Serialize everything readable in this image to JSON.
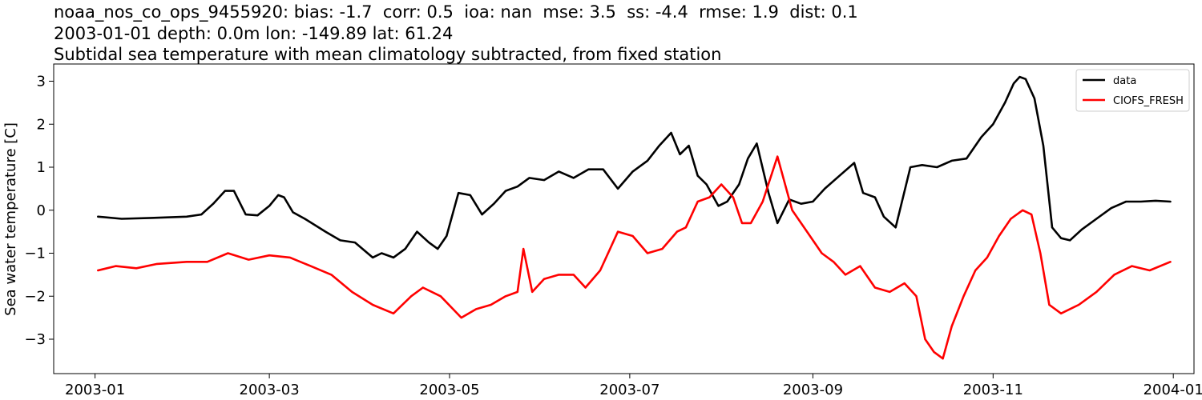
{
  "chart_data": {
    "type": "line",
    "title_lines": [
      "noaa_nos_co_ops_9455920: bias: -1.7  corr: 0.5  ioa: nan  mse: 3.5  ss: -4.4  rmse: 1.9  dist: 0.1",
      "2003-01-01 depth: 0.0m lon: -149.89 lat: 61.24",
      "Subtidal sea temperature with mean climatology subtracted, from fixed station"
    ],
    "xlabel": "",
    "ylabel": "Sea water temperature [C]",
    "xlim": [
      "2002-12-18",
      "2004-01-08"
    ],
    "ylim": [
      -3.8,
      3.4
    ],
    "x_ticks": [
      "2003-01-01",
      "2003-03-01",
      "2003-05-01",
      "2003-07-01",
      "2003-09-01",
      "2003-11-01",
      "2004-01-01"
    ],
    "x_tick_labels": [
      "2003-01",
      "2003-03",
      "2003-05",
      "2003-07",
      "2003-09",
      "2003-11",
      "2004-01"
    ],
    "y_ticks": [
      -3,
      -2,
      -1,
      0,
      1,
      2,
      3
    ],
    "y_tick_labels": [
      "−3",
      "−2",
      "−1",
      "0",
      "1",
      "2",
      "3"
    ],
    "grid": false,
    "legend": {
      "placement": "top-right"
    },
    "series": [
      {
        "name": "data",
        "color": "#000000",
        "x": [
          "2003-01-02",
          "2003-01-10",
          "2003-01-20",
          "2003-02-01",
          "2003-02-06",
          "2003-02-10",
          "2003-02-14",
          "2003-02-17",
          "2003-02-21",
          "2003-02-25",
          "2003-03-01",
          "2003-03-04",
          "2003-03-06",
          "2003-03-09",
          "2003-03-13",
          "2003-03-20",
          "2003-03-25",
          "2003-03-30",
          "2003-04-05",
          "2003-04-08",
          "2003-04-12",
          "2003-04-16",
          "2003-04-20",
          "2003-04-24",
          "2003-04-27",
          "2003-04-30",
          "2003-05-04",
          "2003-05-08",
          "2003-05-12",
          "2003-05-16",
          "2003-05-20",
          "2003-05-24",
          "2003-05-28",
          "2003-06-02",
          "2003-06-07",
          "2003-06-12",
          "2003-06-17",
          "2003-06-22",
          "2003-06-27",
          "2003-07-02",
          "2003-07-07",
          "2003-07-11",
          "2003-07-15",
          "2003-07-18",
          "2003-07-21",
          "2003-07-24",
          "2003-07-27",
          "2003-07-31",
          "2003-08-03",
          "2003-08-07",
          "2003-08-10",
          "2003-08-13",
          "2003-08-17",
          "2003-08-20",
          "2003-08-24",
          "2003-08-28",
          "2003-09-01",
          "2003-09-05",
          "2003-09-10",
          "2003-09-15",
          "2003-09-18",
          "2003-09-22",
          "2003-09-25",
          "2003-09-29",
          "2003-10-04",
          "2003-10-08",
          "2003-10-13",
          "2003-10-18",
          "2003-10-23",
          "2003-10-28",
          "2003-11-01",
          "2003-11-05",
          "2003-11-08",
          "2003-11-10",
          "2003-11-12",
          "2003-11-15",
          "2003-11-18",
          "2003-11-21",
          "2003-11-24",
          "2003-11-27",
          "2003-12-01",
          "2003-12-06",
          "2003-12-11",
          "2003-12-16",
          "2003-12-21",
          "2003-12-26",
          "2003-12-31"
        ],
        "y": [
          -0.15,
          -0.2,
          -0.18,
          -0.15,
          -0.1,
          0.15,
          0.45,
          0.45,
          -0.1,
          -0.12,
          0.1,
          0.35,
          0.3,
          -0.05,
          -0.2,
          -0.5,
          -0.7,
          -0.75,
          -1.1,
          -1.0,
          -1.1,
          -0.9,
          -0.5,
          -0.75,
          -0.9,
          -0.6,
          0.4,
          0.35,
          -0.1,
          0.15,
          0.45,
          0.55,
          0.75,
          0.7,
          0.9,
          0.75,
          0.95,
          0.95,
          0.5,
          0.9,
          1.15,
          1.5,
          1.8,
          1.3,
          1.5,
          0.8,
          0.6,
          0.1,
          0.2,
          0.6,
          1.2,
          1.55,
          0.4,
          -0.3,
          0.25,
          0.15,
          0.2,
          0.5,
          0.8,
          1.1,
          0.4,
          0.3,
          -0.15,
          -0.4,
          1.0,
          1.05,
          1.0,
          1.15,
          1.2,
          1.7,
          2.0,
          2.5,
          2.95,
          3.1,
          3.05,
          2.6,
          1.5,
          -0.4,
          -0.65,
          -0.7,
          -0.45,
          -0.2,
          0.05,
          0.2,
          0.2,
          0.22,
          0.2
        ]
      },
      {
        "name": "CIOFS_FRESH",
        "color": "#ff0000",
        "x": [
          "2003-01-02",
          "2003-01-08",
          "2003-01-15",
          "2003-01-22",
          "2003-02-01",
          "2003-02-08",
          "2003-02-15",
          "2003-02-22",
          "2003-03-01",
          "2003-03-08",
          "2003-03-15",
          "2003-03-22",
          "2003-03-29",
          "2003-04-05",
          "2003-04-12",
          "2003-04-18",
          "2003-04-22",
          "2003-04-28",
          "2003-05-05",
          "2003-05-10",
          "2003-05-15",
          "2003-05-20",
          "2003-05-24",
          "2003-05-26",
          "2003-05-29",
          "2003-06-02",
          "2003-06-07",
          "2003-06-12",
          "2003-06-16",
          "2003-06-21",
          "2003-06-27",
          "2003-07-02",
          "2003-07-07",
          "2003-07-12",
          "2003-07-17",
          "2003-07-20",
          "2003-07-24",
          "2003-07-28",
          "2003-08-01",
          "2003-08-05",
          "2003-08-08",
          "2003-08-11",
          "2003-08-15",
          "2003-08-20",
          "2003-08-25",
          "2003-08-30",
          "2003-09-04",
          "2003-09-08",
          "2003-09-12",
          "2003-09-17",
          "2003-09-22",
          "2003-09-27",
          "2003-10-02",
          "2003-10-06",
          "2003-10-09",
          "2003-10-12",
          "2003-10-15",
          "2003-10-18",
          "2003-10-22",
          "2003-10-26",
          "2003-10-30",
          "2003-11-03",
          "2003-11-07",
          "2003-11-11",
          "2003-11-14",
          "2003-11-17",
          "2003-11-20",
          "2003-11-24",
          "2003-11-30",
          "2003-12-06",
          "2003-12-12",
          "2003-12-18",
          "2003-12-24",
          "2003-12-31"
        ],
        "y": [
          -1.4,
          -1.3,
          -1.35,
          -1.25,
          -1.2,
          -1.2,
          -1.0,
          -1.15,
          -1.05,
          -1.1,
          -1.3,
          -1.5,
          -1.9,
          -2.2,
          -2.4,
          -2.0,
          -1.8,
          -2.0,
          -2.5,
          -2.3,
          -2.2,
          -2.0,
          -1.9,
          -0.9,
          -1.9,
          -1.6,
          -1.5,
          -1.5,
          -1.8,
          -1.4,
          -0.5,
          -0.6,
          -1.0,
          -0.9,
          -0.5,
          -0.4,
          0.2,
          0.3,
          0.6,
          0.3,
          -0.3,
          -0.3,
          0.2,
          1.25,
          0.0,
          -0.5,
          -1.0,
          -1.2,
          -1.5,
          -1.3,
          -1.8,
          -1.9,
          -1.7,
          -2.0,
          -3.0,
          -3.3,
          -3.45,
          -2.7,
          -2.0,
          -1.4,
          -1.1,
          -0.6,
          -0.2,
          0.0,
          -0.1,
          -1.0,
          -2.2,
          -2.4,
          -2.2,
          -1.9,
          -1.5,
          -1.3,
          -1.4,
          -1.2
        ]
      }
    ]
  }
}
